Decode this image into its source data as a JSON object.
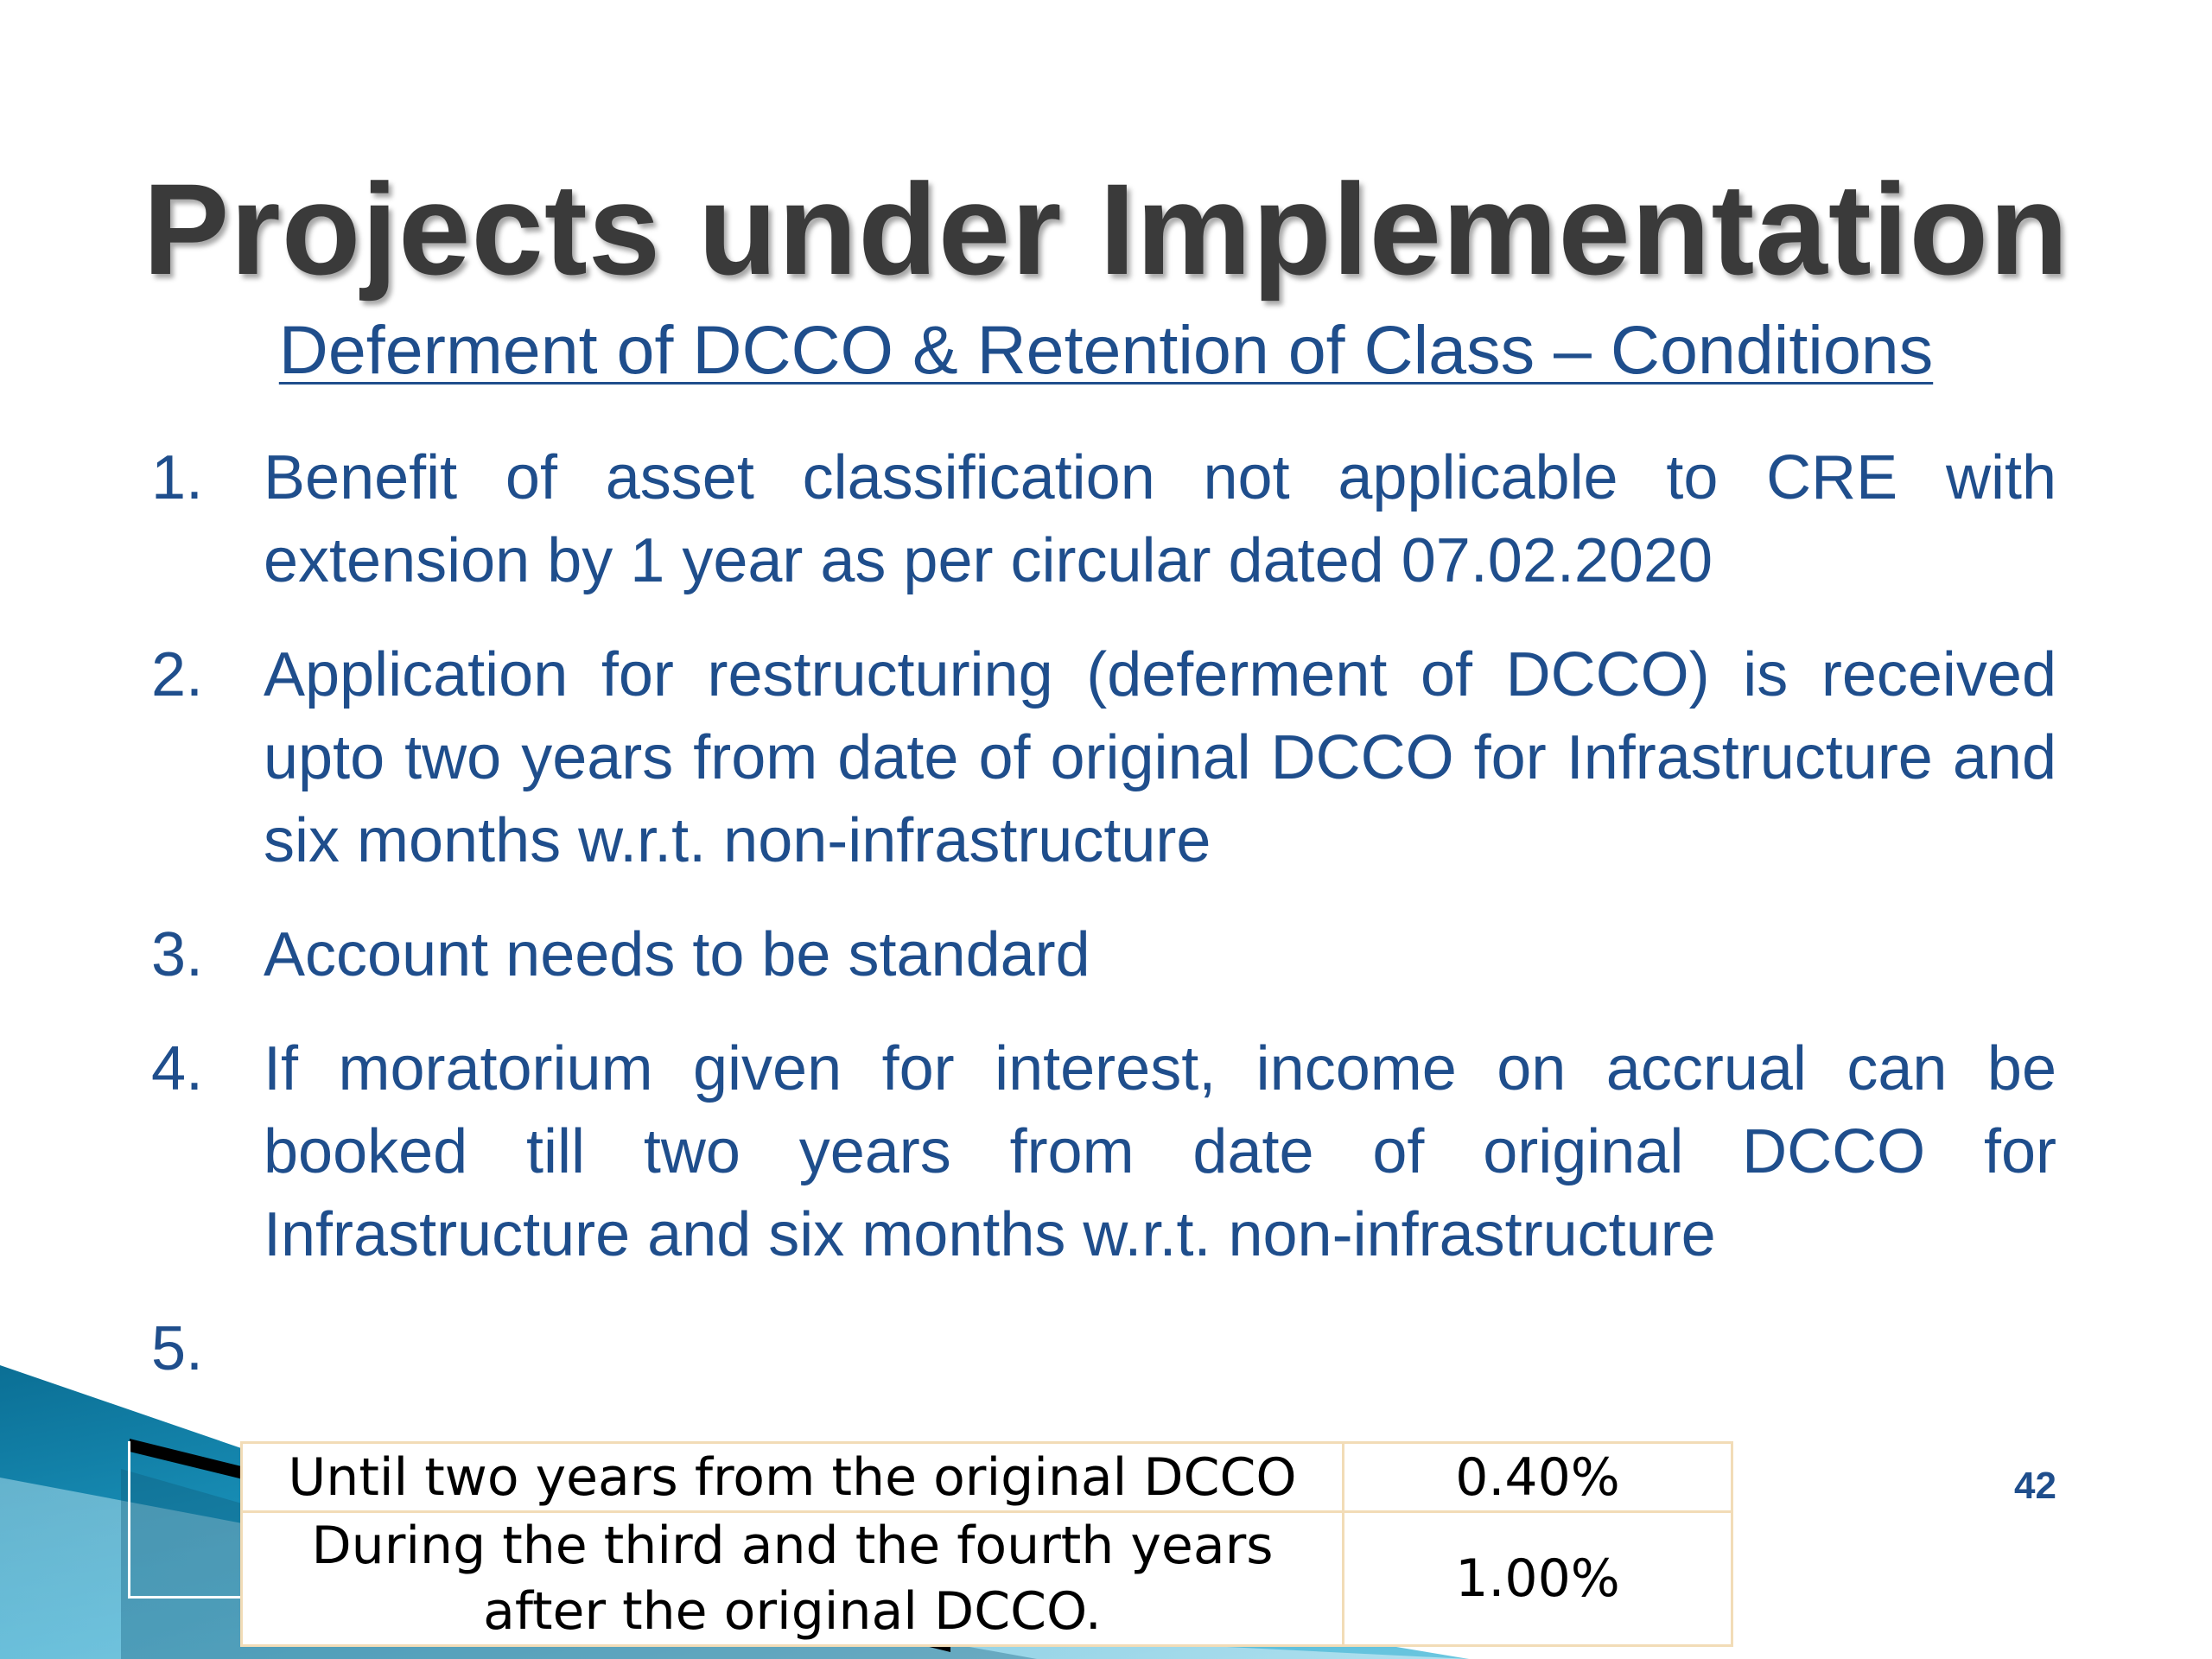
{
  "slide": {
    "title": "Projects under Implementation",
    "subtitle": "Deferment of DCCO & Retention of Class – Conditions",
    "points": [
      {
        "num": "1.",
        "text": "Benefit of asset classification not applicable to CRE with extension by 1 year as per circular dated 07.02.2020"
      },
      {
        "num": "2.",
        "text": "Application for restructuring (deferment of DCCO) is received upto two years from date of original DCCO for Infrastructure and six months w.r.t. non-infrastructure"
      },
      {
        "num": "3.",
        "text": "Account needs to be standard"
      },
      {
        "num": "4.",
        "text": "If moratorium given for interest, income on accrual can be booked till two years from date of original DCCO for Infrastructure and six months  w.r.t. non-infrastructure"
      },
      {
        "num": "5.",
        "text": ""
      }
    ],
    "table": {
      "rows": [
        {
          "condition": "Until two years from the original DCCO",
          "rate": "0.40%"
        },
        {
          "condition": "During the third and the fourth years after the original DCCO.",
          "rate": "1.00%"
        }
      ]
    },
    "page_number": "42"
  },
  "colors": {
    "title": "#3a3a3a",
    "body_text": "#1f4e8c",
    "table_border": "#f2dcb7",
    "accent_teal": "#1e8db4"
  }
}
